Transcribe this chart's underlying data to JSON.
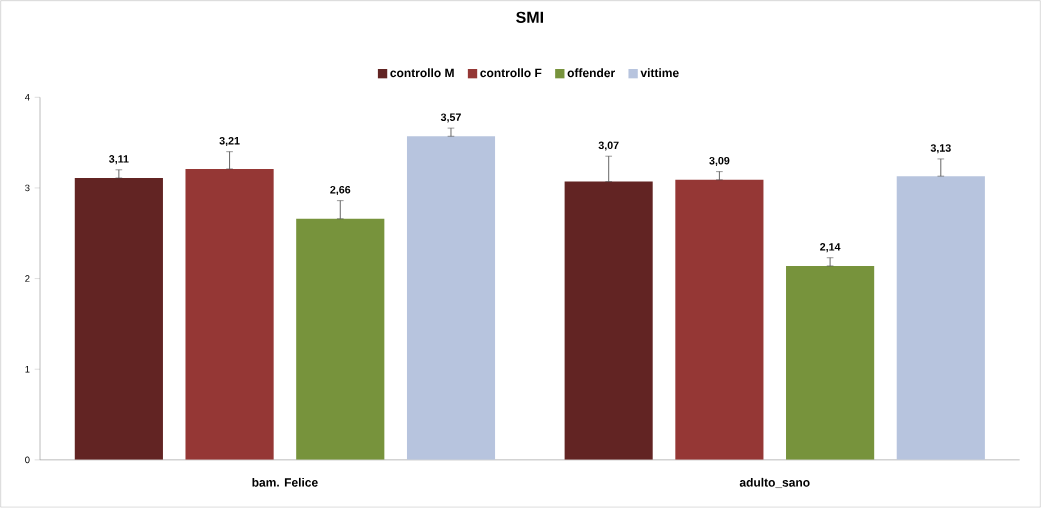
{
  "chart_data": {
    "type": "bar",
    "title": "SMI",
    "categories": [
      "bam. Felice",
      "adulto_sano"
    ],
    "series": [
      {
        "name": "controllo M",
        "color": "#622423",
        "values": [
          3.11,
          3.07
        ],
        "errors": [
          [
            3.11,
            3.2
          ],
          [
            3.07,
            3.35
          ]
        ],
        "value_labels": [
          "3,11",
          "3,07"
        ]
      },
      {
        "name": "controllo F",
        "color": "#953735",
        "values": [
          3.21,
          3.09
        ],
        "errors": [
          [
            3.21,
            3.4
          ],
          [
            3.09,
            3.18
          ]
        ],
        "value_labels": [
          "3,21",
          "3,09"
        ]
      },
      {
        "name": "offender",
        "color": "#77933c",
        "values": [
          2.66,
          2.14
        ],
        "errors": [
          [
            2.66,
            2.86
          ],
          [
            2.14,
            2.23
          ]
        ],
        "value_labels": [
          "2,66",
          "2,14"
        ]
      },
      {
        "name": "vittime",
        "color": "#b7c4de",
        "values": [
          3.57,
          3.13
        ],
        "errors": [
          [
            3.57,
            3.66
          ],
          [
            3.13,
            3.32
          ]
        ],
        "value_labels": [
          "3,57",
          "3,13"
        ]
      }
    ],
    "ylim": [
      0,
      4
    ],
    "yticks": [
      0,
      1,
      2,
      3,
      4
    ],
    "grid": false,
    "legend": "top"
  }
}
